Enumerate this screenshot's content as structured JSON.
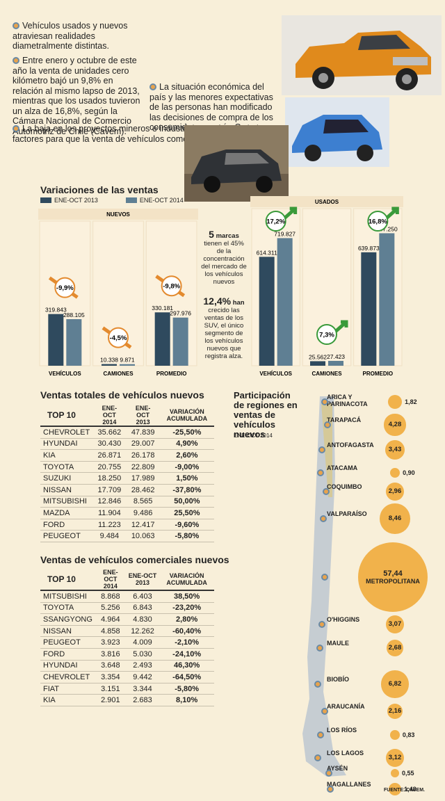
{
  "intro": {
    "b1": "Vehículos usados y nuevos atraviesan realidades diametralmente distintas.",
    "b2": "Entre enero y octubre de este año la venta de unidades cero kilómetro bajó un 9,8% en relación al mismo lapso de 2013, mientras que los usados tuvieron un alza de 16,8%, según la Cámara Nacional de Comercio Automotriz de Chile (Cavem).",
    "b3": "La baja en los proyectos mineros e industriales sería uno de los factores para que la venta de vehículos comerciales nuevos cayera 25,4% a octubre en relación al mismo periodo del año pasado. En tanto las unidades comerciales usadas, crecieron 23,6%.",
    "b4": "La situación económica del país y las menores expectativas de las personas han modificado las decisiones de compra de los consumidores, según Cavem."
  },
  "chart": {
    "title": "Variaciones de las ventas",
    "legend": [
      "ENE-OCT 2013",
      "ENE-OCT 2014"
    ],
    "colors": {
      "s2013": "#2f4a5e",
      "s2014": "#5f7f93",
      "down": "#e38a2e",
      "up": "#3a9a3a"
    },
    "nuevos_label": "NUEVOS",
    "usados_label": "USADOS",
    "note1_num": "5",
    "note1_word": "marcas",
    "note1_text": "tienen el 45% de la concentración del mercado de los vehículos nuevos",
    "note2_num": "12,4%",
    "note2_word": "han",
    "note2_text": "crecido las ventas de los SUV, el único segmento de los vehículos nuevos que registra alza."
  },
  "chart_data": [
    {
      "type": "bar",
      "title": "NUEVOS",
      "categories": [
        "VEHÍCULOS",
        "CAMIONES",
        "PROMEDIO"
      ],
      "series": [
        {
          "name": "ENE-OCT 2013",
          "values": [
            319843,
            10338,
            330181
          ],
          "labels": [
            "319.843",
            "10.338",
            "330.181"
          ]
        },
        {
          "name": "ENE-OCT 2014",
          "values": [
            288105,
            9871,
            297976
          ],
          "labels": [
            "288.105",
            "9.871",
            "297.976"
          ]
        }
      ],
      "changes": [
        "-9,9%",
        "-4,5%",
        "-9,8%"
      ],
      "ylim": [
        0,
        800000
      ]
    },
    {
      "type": "bar",
      "title": "USADOS",
      "categories": [
        "VEHÍCULOS",
        "CAMIONES",
        "PROMEDIO"
      ],
      "series": [
        {
          "name": "ENE-OCT 2013",
          "values": [
            614311,
            25562,
            639873
          ],
          "labels": [
            "614.311",
            "25.562",
            "639.873"
          ]
        },
        {
          "name": "ENE-OCT 2014",
          "values": [
            719827,
            27423,
            747250
          ],
          "labels": [
            "719.827",
            "27.423",
            "747.250"
          ]
        }
      ],
      "changes": [
        "17,2%",
        "7,3%",
        "16,8%"
      ],
      "ylim": [
        0,
        800000
      ]
    }
  ],
  "table1": {
    "title": "Ventas totales de vehículos nuevos",
    "headers": [
      "TOP 10",
      "ENE-OCT 2014",
      "ENE-OCT 2013",
      "VARIACIÓN ACUMULADA"
    ],
    "rows": [
      [
        "CHEVROLET",
        "35.662",
        "47.839",
        "-25,50%"
      ],
      [
        "HYUNDAI",
        "30.430",
        "29.007",
        "4,90%"
      ],
      [
        "KIA",
        "26.871",
        "26.178",
        "2,60%"
      ],
      [
        "TOYOTA",
        "20.755",
        "22.809",
        "-9,00%"
      ],
      [
        "SUZUKI",
        "18.250",
        "17.989",
        "1,50%"
      ],
      [
        "NISSAN",
        "17.709",
        "28.462",
        "-37,80%"
      ],
      [
        "MITSUBISHI",
        "12.846",
        "8.565",
        "50,00%"
      ],
      [
        "MAZDA",
        "11.904",
        "9.486",
        "25,50%"
      ],
      [
        "FORD",
        "11.223",
        "12.417",
        "-9,60%"
      ],
      [
        "PEUGEOT",
        "9.484",
        "10.063",
        "-5,80%"
      ]
    ]
  },
  "table2": {
    "title": "Ventas de vehículos comerciales nuevos",
    "headers": [
      "TOP 10",
      "ENE-OCT 2014",
      "ENE-OCT 2013",
      "VARIACIÓN ACUMULADA"
    ],
    "rows": [
      [
        "MITSUBISHI",
        "8.868",
        "6.403",
        "38,50%"
      ],
      [
        "TOYOTA",
        "5.256",
        "6.843",
        "-23,20%"
      ],
      [
        "SSANGYONG",
        "4.964",
        "4.830",
        "2,80%"
      ],
      [
        "NISSAN",
        "4.858",
        "12.262",
        "-60,40%"
      ],
      [
        "PEUGEOT",
        "3.923",
        "4.009",
        "-2,10%"
      ],
      [
        "FORD",
        "3.816",
        "5.030",
        "-24,10%"
      ],
      [
        "HYUNDAI",
        "3.648",
        "2.493",
        "46,30%"
      ],
      [
        "CHEVROLET",
        "3.354",
        "9.442",
        "-64,50%"
      ],
      [
        "FIAT",
        "3.151",
        "3.344",
        "-5,80%"
      ],
      [
        "KIA",
        "2.901",
        "2.683",
        "8,10%"
      ]
    ]
  },
  "map": {
    "title": "Participación de regiones en ventas de vehículos nuevos",
    "subtitle": "ENE-OCT 2014",
    "regions": [
      {
        "name": "ARICA Y PARINACOTA",
        "value": "1,82",
        "v": 1.82
      },
      {
        "name": "TARAPACÁ",
        "value": "4,28",
        "v": 4.28
      },
      {
        "name": "ANTOFAGASTA",
        "value": "3,43",
        "v": 3.43
      },
      {
        "name": "ATACAMA",
        "value": "0,90",
        "v": 0.9
      },
      {
        "name": "COQUIMBO",
        "value": "2,96",
        "v": 2.96
      },
      {
        "name": "VALPARAÍSO",
        "value": "8,46",
        "v": 8.46
      },
      {
        "name": "METROPOLITANA",
        "value": "57,44",
        "v": 57.44
      },
      {
        "name": "O'HIGGINS",
        "value": "3,07",
        "v": 3.07
      },
      {
        "name": "MAULE",
        "value": "2,68",
        "v": 2.68
      },
      {
        "name": "BIOBÍO",
        "value": "6,82",
        "v": 6.82
      },
      {
        "name": "ARAUCANÍA",
        "value": "2,16",
        "v": 2.16
      },
      {
        "name": "LOS RÍOS",
        "value": "0,83",
        "v": 0.83
      },
      {
        "name": "LOS LAGOS",
        "value": "3,12",
        "v": 3.12
      },
      {
        "name": "AYSÉN",
        "value": "0,55",
        "v": 0.55
      },
      {
        "name": "MAGALLANES",
        "value": "1,48",
        "v": 1.48
      }
    ],
    "source": "FUENTE: CAVEM."
  }
}
